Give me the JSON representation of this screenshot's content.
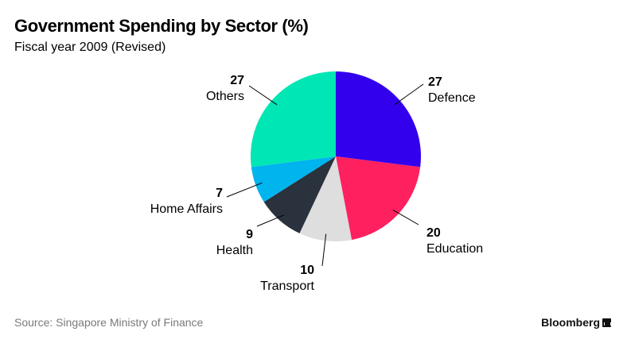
{
  "header": {
    "title": "Government Spending by Sector (%)",
    "subtitle": "Fiscal year 2009 (Revised)"
  },
  "footer": {
    "source": "Source: Singapore Ministry of Finance",
    "brand": "Bloomberg"
  },
  "chart_data": {
    "type": "pie",
    "unit": "%",
    "start_angle_deg": 0,
    "direction": "clockwise",
    "slices": [
      {
        "label": "Defence",
        "value": 27,
        "color": "#3300ee"
      },
      {
        "label": "Education",
        "value": 20,
        "color": "#ff2060"
      },
      {
        "label": "Transport",
        "value": 10,
        "color": "#dedede"
      },
      {
        "label": "Health",
        "value": 9,
        "color": "#2a323e"
      },
      {
        "label": "Home Affairs",
        "value": 7,
        "color": "#00b4ee"
      },
      {
        "label": "Others",
        "value": 27,
        "color": "#00e6b4"
      }
    ]
  }
}
